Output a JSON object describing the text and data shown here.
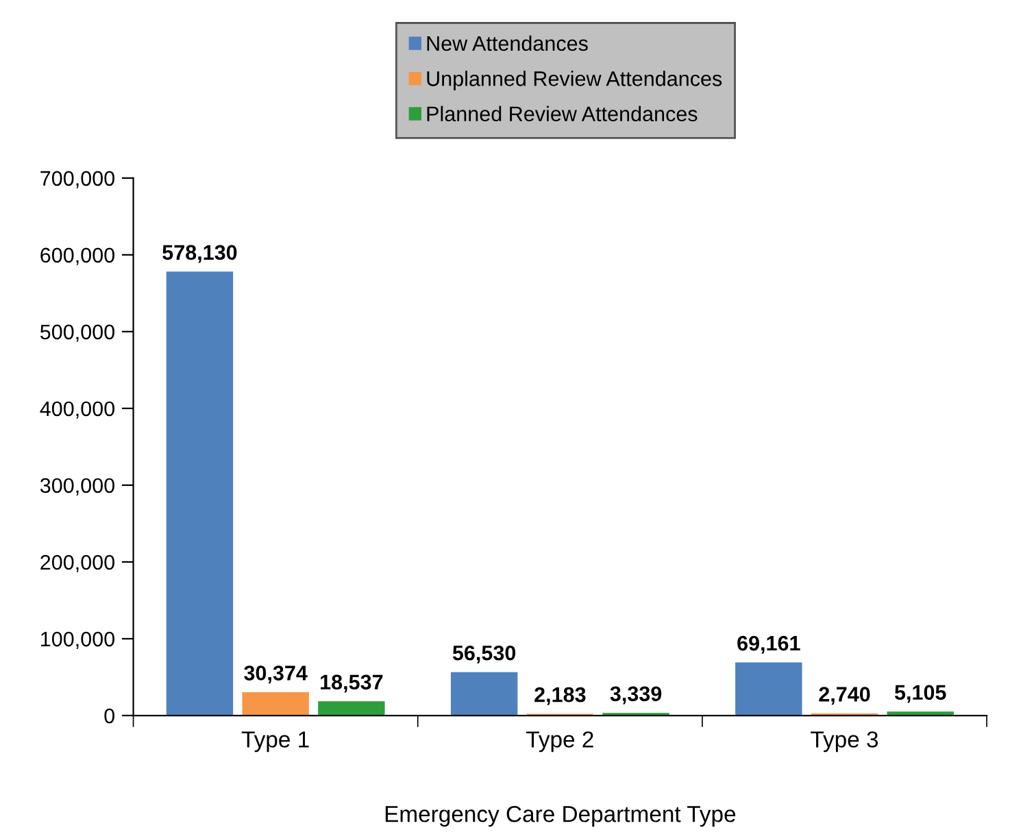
{
  "chart_data": {
    "type": "bar",
    "xlabel": "Emergency Care Department Type",
    "categories": [
      "Type 1",
      "Type 2",
      "Type 3"
    ],
    "series": [
      {
        "name": "New Attendances",
        "color": "#4f81bd",
        "values": [
          578130,
          56530,
          69161
        ],
        "value_labels": [
          "578,130",
          "56,530",
          "69,161"
        ]
      },
      {
        "name": "Unplanned Review Attendances",
        "color": "#f79646",
        "values": [
          30374,
          2183,
          2740
        ],
        "value_labels": [
          "30,374",
          "2,183",
          "2,740"
        ]
      },
      {
        "name": "Planned Review Attendances",
        "color": "#2e9e3a",
        "values": [
          18537,
          3339,
          5105
        ],
        "value_labels": [
          "18,537",
          "3,339",
          "5,105"
        ]
      }
    ],
    "ylim": [
      0,
      700000
    ],
    "yticks": [
      {
        "value": 0,
        "label": "0"
      },
      {
        "value": 100000,
        "label": "100,000"
      },
      {
        "value": 200000,
        "label": "200,000"
      },
      {
        "value": 300000,
        "label": "300,000"
      },
      {
        "value": 400000,
        "label": "400,000"
      },
      {
        "value": 500000,
        "label": "500,000"
      },
      {
        "value": 600000,
        "label": "600,000"
      },
      {
        "value": 700000,
        "label": "700,000"
      }
    ],
    "grid": false,
    "legend": "top"
  }
}
